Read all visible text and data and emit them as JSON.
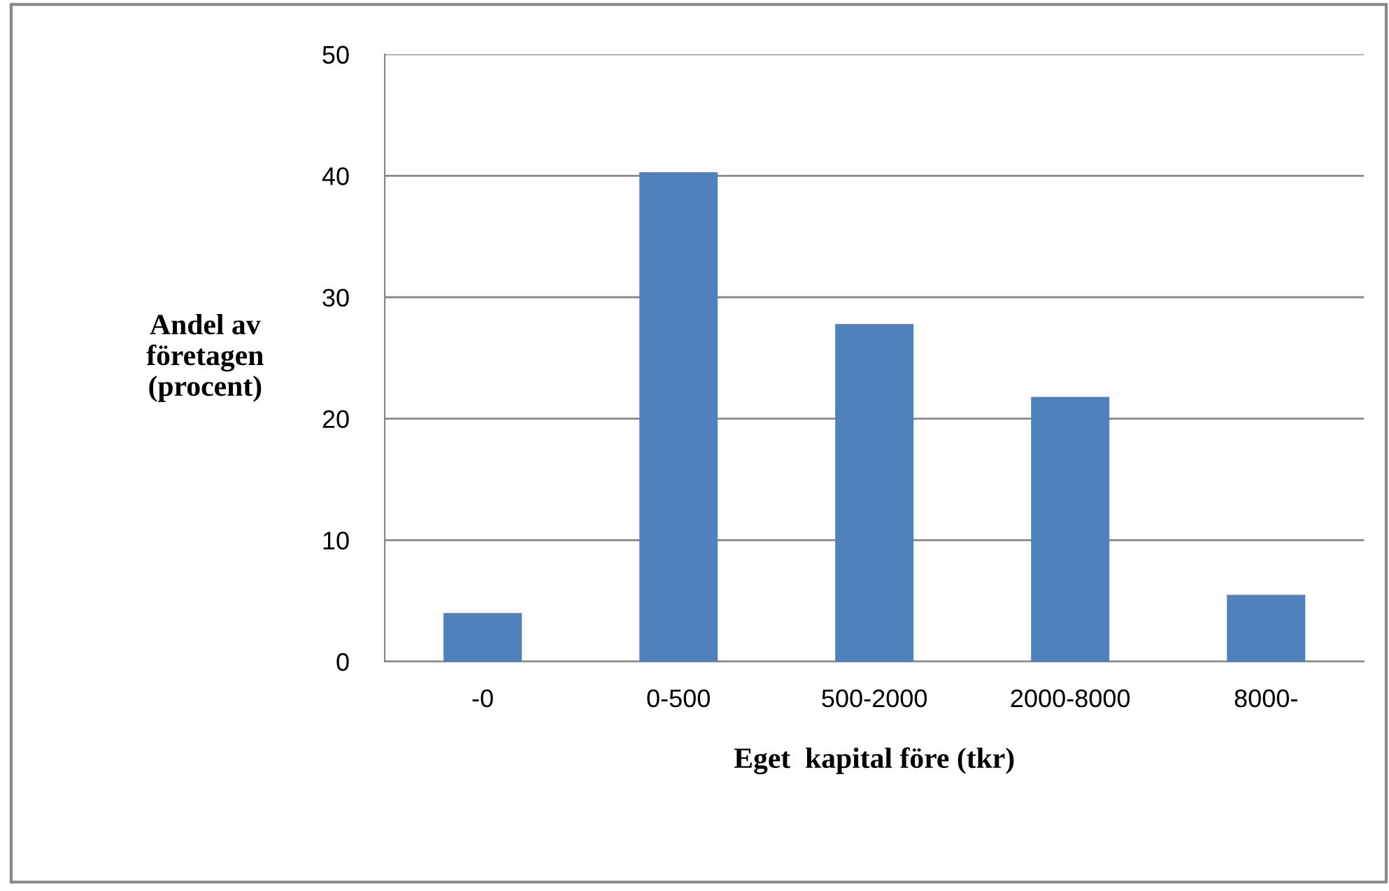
{
  "chart_data": {
    "type": "bar",
    "xlabel": "Eget  kapital före (tkr)",
    "ylabel": "Andel av\nföretagen\n(procent)",
    "categories": [
      "-0",
      "0-500",
      "500-2000",
      "2000-8000",
      "8000-"
    ],
    "values": [
      4.0,
      40.3,
      27.8,
      21.8,
      5.5
    ],
    "color": "#4f81bd",
    "ylim": [
      0,
      50
    ],
    "yticks": [
      0,
      10,
      20,
      30,
      40,
      50
    ],
    "grid": "y",
    "legend": false
  }
}
